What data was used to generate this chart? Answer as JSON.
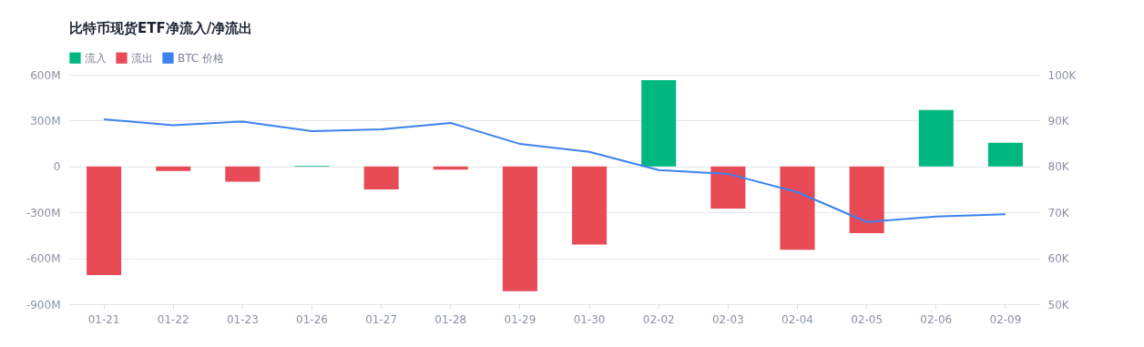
{
  "chart_data": {
    "type": "bar",
    "title": "比特币现货ETF净流入/净流出",
    "categories": [
      "01-21",
      "01-22",
      "01-23",
      "01-26",
      "01-27",
      "01-28",
      "01-29",
      "01-30",
      "02-02",
      "02-03",
      "02-04",
      "02-05",
      "02-06",
      "02-09"
    ],
    "series": [
      {
        "name": "流入",
        "color": "#00b87f",
        "values": [
          null,
          null,
          null,
          5,
          null,
          null,
          null,
          null,
          565,
          null,
          null,
          null,
          370,
          155
        ]
      },
      {
        "name": "流出",
        "color": "#e84b55",
        "values": [
          -710,
          -30,
          -100,
          null,
          -150,
          -20,
          -815,
          -510,
          null,
          -275,
          -545,
          -435,
          null,
          null
        ]
      },
      {
        "name": "BTC 价格",
        "type": "line",
        "axis": "y2",
        "color": "#3b82f0",
        "values": [
          90.3,
          89.0,
          89.8,
          87.7,
          88.1,
          89.5,
          84.9,
          83.2,
          79.2,
          78.4,
          74.4,
          67.9,
          69.1,
          69.6
        ]
      }
    ],
    "ylim": [
      -900,
      600
    ],
    "yticks": [
      {
        "value": -900,
        "label": "-900M"
      },
      {
        "value": -600,
        "label": "-600M"
      },
      {
        "value": -300,
        "label": "-300M"
      },
      0,
      {
        "value": 300,
        "label": "300M"
      },
      {
        "value": 600,
        "label": "600M"
      }
    ],
    "y2lim": [
      50,
      100
    ],
    "y2ticks": [
      {
        "value": 50,
        "label": "50K"
      },
      {
        "value": 60,
        "label": "60K"
      },
      {
        "value": 70,
        "label": "70K"
      },
      {
        "value": 80,
        "label": "80K"
      },
      {
        "value": 90,
        "label": "90K"
      },
      {
        "value": 100,
        "label": "100K"
      }
    ],
    "grid": "y",
    "legend": "top left",
    "marker": "none",
    "line_style": "solid"
  }
}
